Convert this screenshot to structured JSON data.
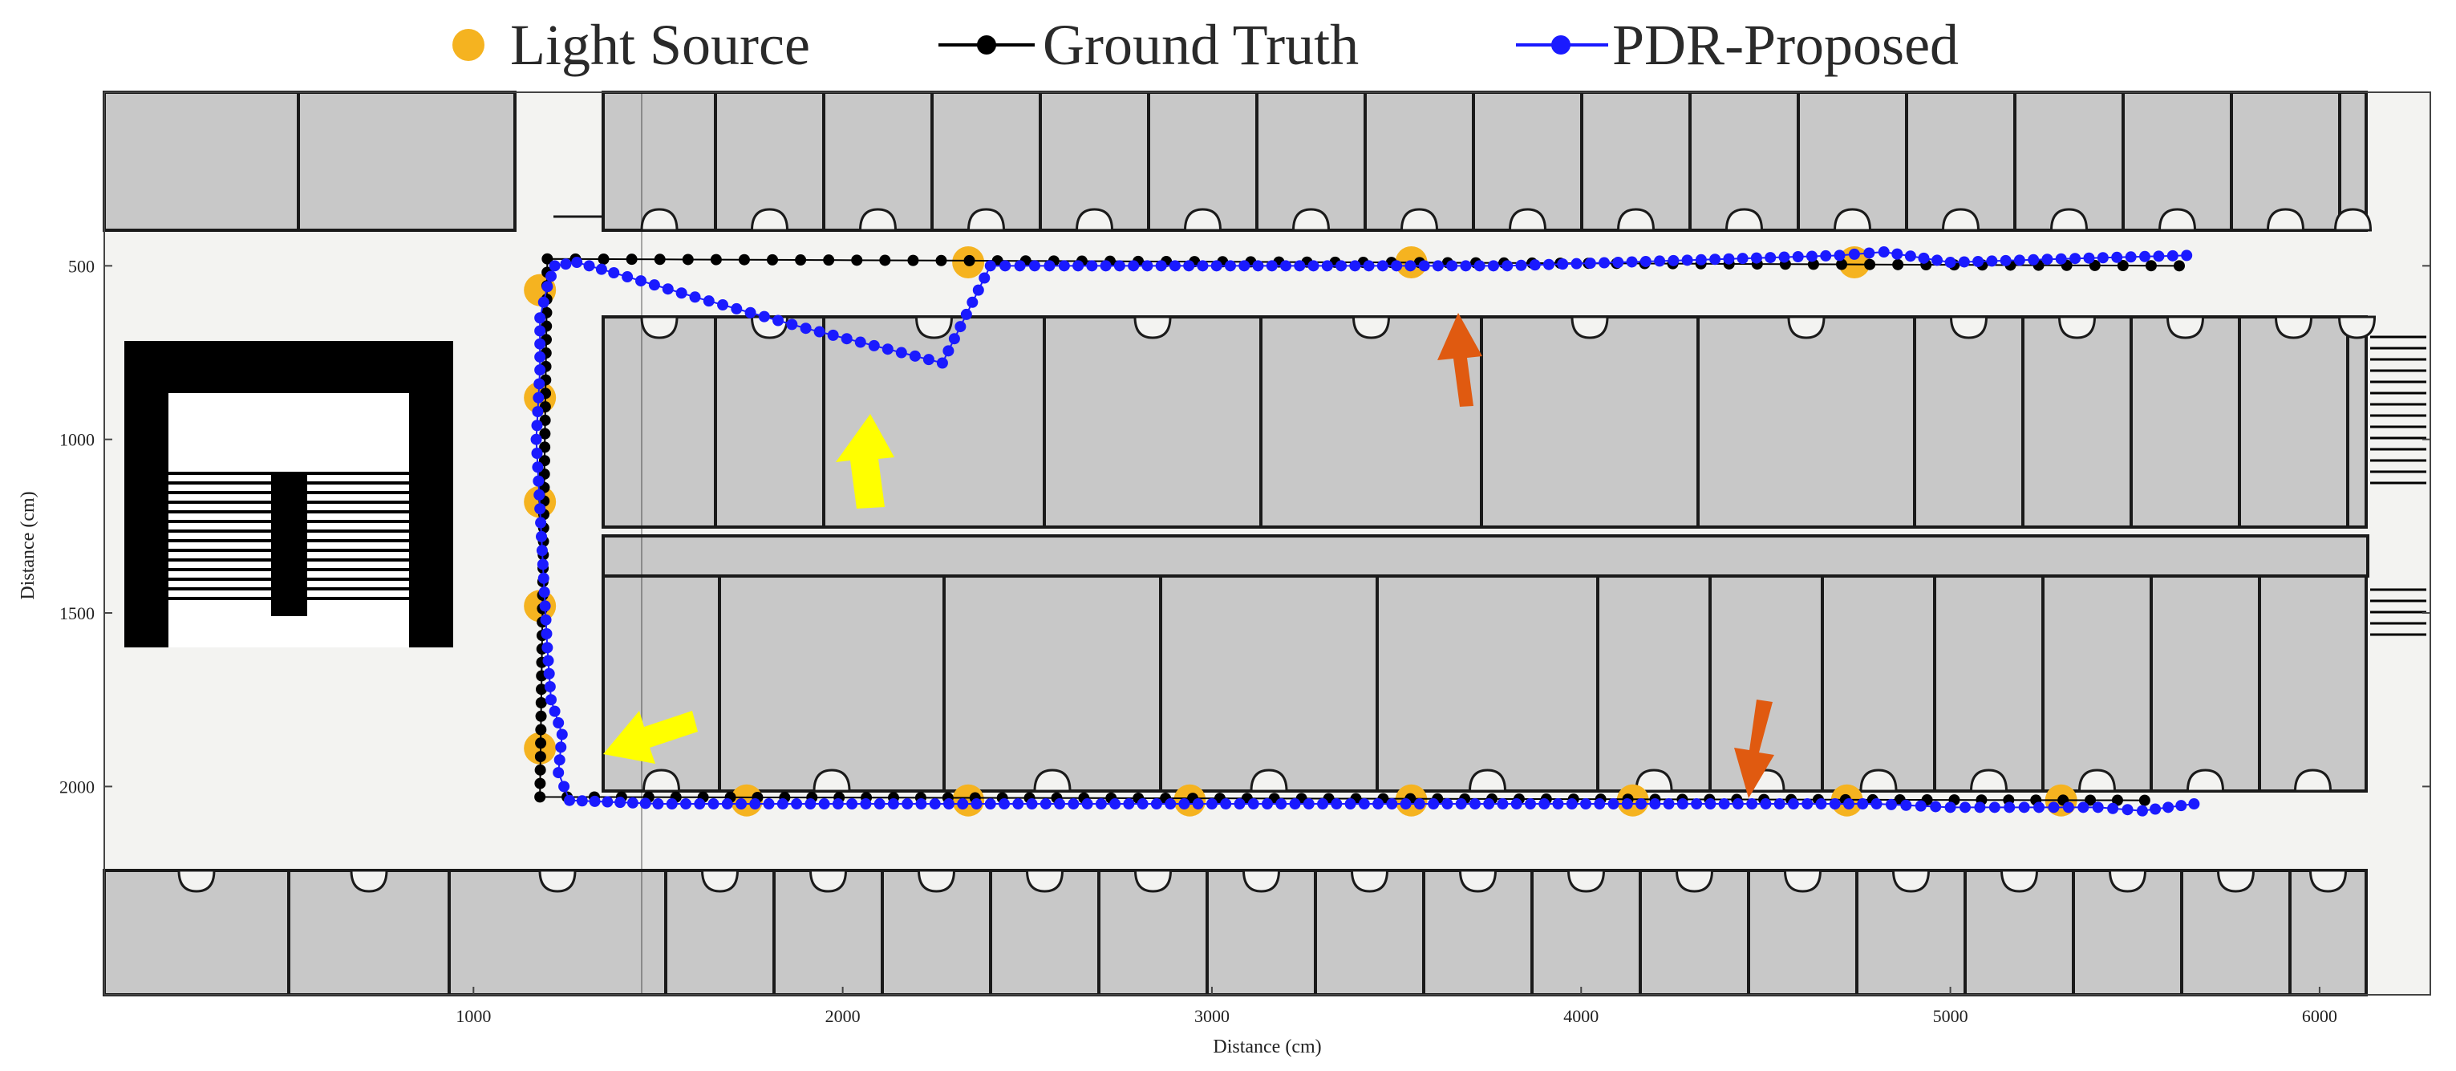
{
  "legend": {
    "light_source": "Light Source",
    "ground_truth": "Ground Truth",
    "pdr_proposed": "PDR-Proposed"
  },
  "colors": {
    "light_source": "#f5b320",
    "ground_truth": "#000000",
    "pdr_proposed": "#1a1aff",
    "wall": "#1a1a1a",
    "room_fill": "#c8c8c8",
    "corridor": "#f3f3f1",
    "arrow_yellow": "#ffff00",
    "arrow_orange": "#e05a10"
  },
  "chart_data": {
    "type": "scatter",
    "xlabel": "Distance (cm)",
    "ylabel": "Distance (cm)",
    "xlim": [
      0,
      6300
    ],
    "ylim": [
      0,
      2600
    ],
    "y_inverted": true,
    "grid": false,
    "legend_position": "top",
    "xticks": [
      1000,
      2000,
      3000,
      4000,
      5000,
      6000
    ],
    "yticks": [
      500,
      1000,
      1500,
      2000
    ],
    "xtick_labels": [
      "1000",
      "2000",
      "3000",
      "4000",
      "5000",
      "6000"
    ],
    "ytick_labels": [
      "500",
      "1000",
      "1500",
      "2000"
    ],
    "light_sources": [
      {
        "x": 2340,
        "y": 490
      },
      {
        "x": 3540,
        "y": 490
      },
      {
        "x": 4740,
        "y": 490
      },
      {
        "x": 1180,
        "y": 570
      },
      {
        "x": 1180,
        "y": 880
      },
      {
        "x": 1180,
        "y": 1180
      },
      {
        "x": 1180,
        "y": 1480
      },
      {
        "x": 1180,
        "y": 1890
      },
      {
        "x": 1740,
        "y": 2040
      },
      {
        "x": 2340,
        "y": 2040
      },
      {
        "x": 2940,
        "y": 2040
      },
      {
        "x": 3540,
        "y": 2040
      },
      {
        "x": 4140,
        "y": 2040
      },
      {
        "x": 4720,
        "y": 2040
      },
      {
        "x": 5300,
        "y": 2040
      }
    ],
    "series": [
      {
        "name": "Ground Truth",
        "segments": [
          {
            "from": [
              5620,
              500
            ],
            "to": [
              1200,
              480
            ],
            "points": 58
          },
          {
            "from": [
              1200,
              480
            ],
            "to": [
              1180,
              2030
            ],
            "points": 40
          },
          {
            "from": [
              1180,
              2030
            ],
            "to": [
              5600,
              2040
            ],
            "points": 60
          }
        ]
      },
      {
        "name": "PDR-Proposed",
        "points": [
          [
            5640,
            470
          ],
          [
            5300,
            480
          ],
          [
            5000,
            490
          ],
          [
            4820,
            460
          ],
          [
            4700,
            470
          ],
          [
            4400,
            480
          ],
          [
            4100,
            490
          ],
          [
            3800,
            500
          ],
          [
            3500,
            500
          ],
          [
            3200,
            500
          ],
          [
            2900,
            500
          ],
          [
            2600,
            500
          ],
          [
            2400,
            500
          ],
          [
            2270,
            780
          ],
          [
            1900,
            680
          ],
          [
            1600,
            590
          ],
          [
            1380,
            520
          ],
          [
            1280,
            490
          ],
          [
            1220,
            500
          ],
          [
            1200,
            560
          ],
          [
            1180,
            650
          ],
          [
            1180,
            800
          ],
          [
            1170,
            1000
          ],
          [
            1180,
            1200
          ],
          [
            1190,
            1400
          ],
          [
            1200,
            1600
          ],
          [
            1210,
            1750
          ],
          [
            1240,
            1850
          ],
          [
            1230,
            1960
          ],
          [
            1260,
            2040
          ],
          [
            1500,
            2050
          ],
          [
            1800,
            2050
          ],
          [
            2100,
            2050
          ],
          [
            2400,
            2050
          ],
          [
            2700,
            2050
          ],
          [
            3000,
            2050
          ],
          [
            3300,
            2050
          ],
          [
            3600,
            2050
          ],
          [
            3900,
            2050
          ],
          [
            4200,
            2050
          ],
          [
            4500,
            2050
          ],
          [
            4800,
            2050
          ],
          [
            5000,
            2060
          ],
          [
            5200,
            2060
          ],
          [
            5400,
            2060
          ],
          [
            5520,
            2070
          ],
          [
            5660,
            2050
          ]
        ]
      }
    ],
    "annotations": [
      {
        "type": "arrow",
        "color": "yellow",
        "x": 2130,
        "y": 1050,
        "direction": "up"
      },
      {
        "type": "arrow",
        "color": "yellow",
        "x": 1450,
        "y": 1720,
        "direction": "left-down"
      },
      {
        "type": "arrow",
        "color": "orange",
        "x": 3680,
        "y": 650,
        "direction": "up"
      },
      {
        "type": "arrow",
        "color": "orange",
        "x": 4570,
        "y": 1820,
        "direction": "down"
      }
    ]
  }
}
